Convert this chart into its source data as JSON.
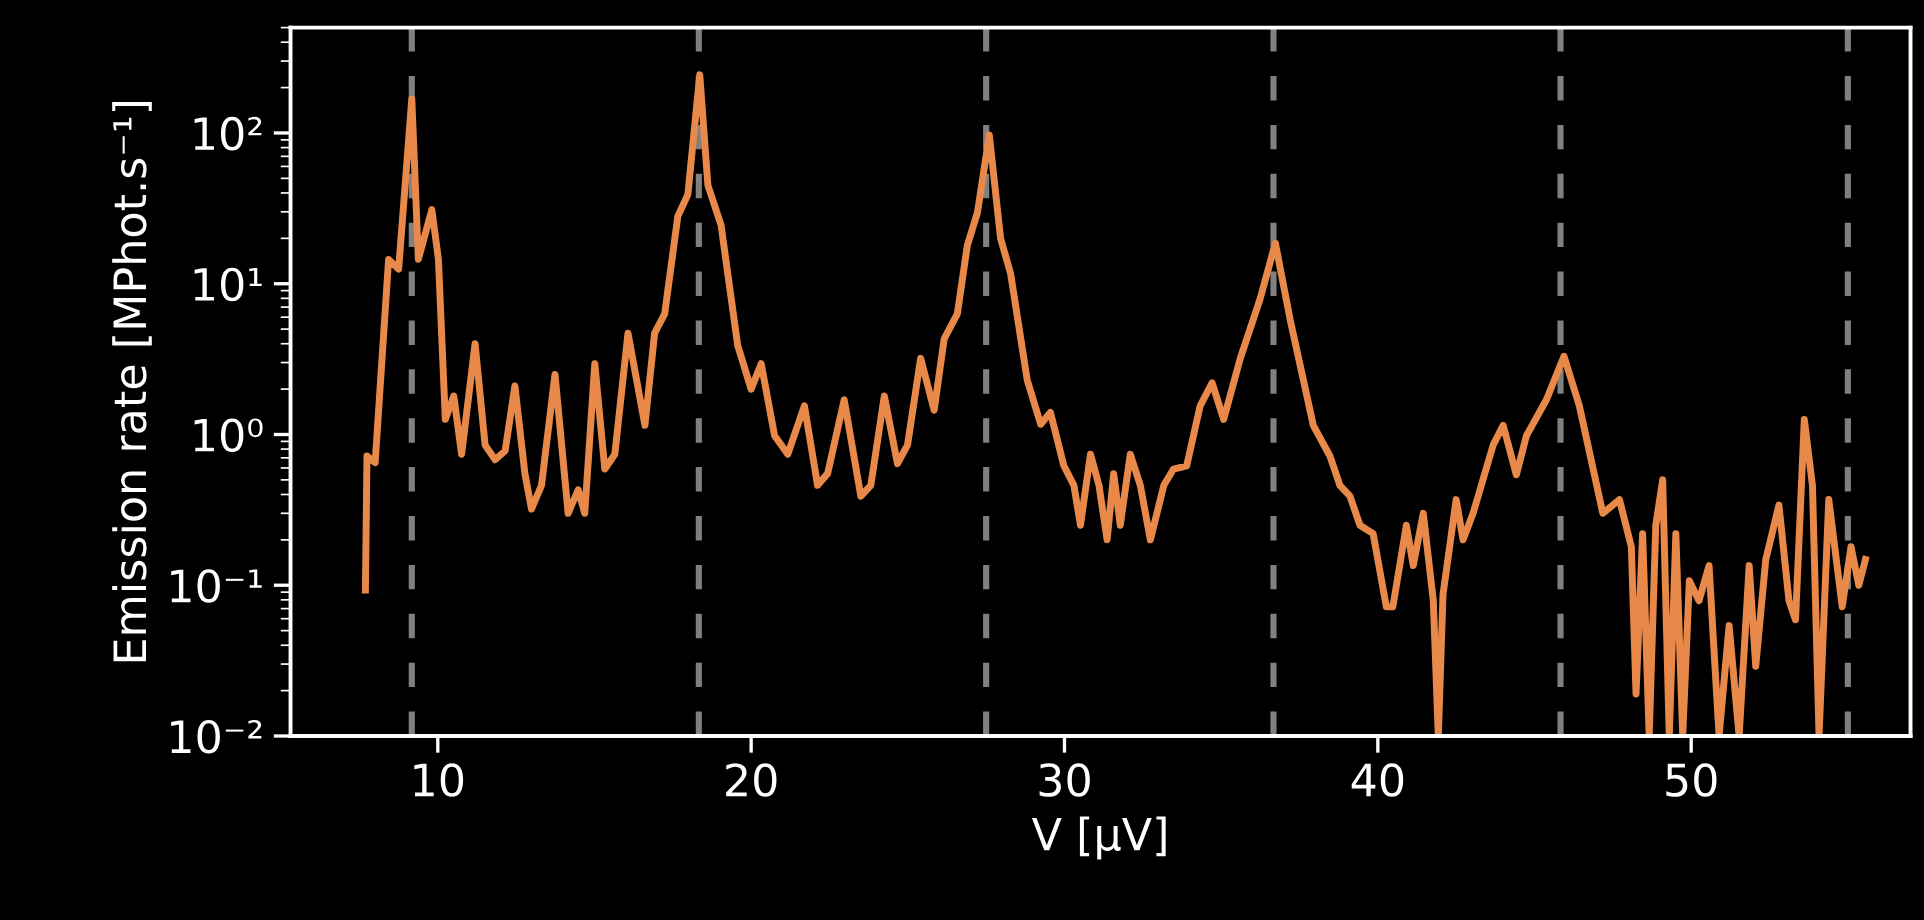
{
  "chart_data": {
    "type": "line",
    "xlabel": "V [μV]",
    "ylabel": "Emission rate [MPhot.s⁻¹]",
    "xlim": [
      5.3,
      57
    ],
    "xticks": [
      10,
      20,
      30,
      40,
      50
    ],
    "ylim": [
      0.01,
      500
    ],
    "log": "y",
    "yticks": [
      {
        "value": 0.01,
        "label": "10⁻²"
      },
      {
        "value": 0.1,
        "label": "10⁻¹"
      },
      {
        "value": 1,
        "label": "10⁰"
      },
      {
        "value": 10,
        "label": "10¹"
      },
      {
        "value": 100,
        "label": "10²"
      }
    ],
    "grid": false,
    "legend": false,
    "ref_lines": [
      {
        "axis": "x",
        "value": 9.17,
        "color": "#808080",
        "line_style": "dashed"
      },
      {
        "axis": "x",
        "value": 18.33,
        "color": "#808080",
        "line_style": "dashed"
      },
      {
        "axis": "x",
        "value": 27.5,
        "color": "#808080",
        "line_style": "dashed"
      },
      {
        "axis": "x",
        "value": 36.67,
        "color": "#808080",
        "line_style": "dashed"
      },
      {
        "axis": "x",
        "value": 45.83,
        "color": "#808080",
        "line_style": "dashed"
      },
      {
        "axis": "x",
        "value": 55.0,
        "color": "#808080",
        "line_style": "dashed"
      }
    ],
    "series": [
      {
        "color": "#e8894a",
        "x": [
          7.69,
          7.74,
          8.0,
          8.43,
          8.75,
          9.17,
          9.38,
          9.81,
          10.02,
          10.24,
          10.51,
          10.76,
          11.19,
          11.51,
          11.83,
          12.15,
          12.46,
          12.78,
          12.99,
          13.31,
          13.74,
          14.16,
          14.48,
          14.69,
          15.01,
          15.33,
          15.65,
          16.07,
          16.61,
          16.92,
          17.24,
          17.66,
          17.98,
          18.36,
          18.62,
          19.04,
          19.57,
          20.0,
          20.32,
          20.75,
          21.17,
          21.7,
          22.12,
          22.44,
          22.97,
          23.5,
          23.82,
          24.25,
          24.67,
          24.99,
          25.41,
          25.84,
          26.16,
          26.58,
          26.9,
          27.22,
          27.6,
          27.96,
          28.28,
          28.81,
          29.24,
          29.55,
          29.98,
          30.3,
          30.51,
          30.83,
          31.1,
          31.36,
          31.57,
          31.78,
          32.1,
          32.42,
          32.74,
          33.17,
          33.48,
          33.9,
          34.33,
          34.71,
          35.08,
          35.61,
          36.24,
          36.73,
          37.2,
          37.94,
          38.47,
          38.79,
          39.11,
          39.43,
          39.85,
          40.27,
          40.48,
          40.91,
          41.13,
          41.45,
          41.77,
          41.93,
          42.08,
          42.5,
          42.72,
          43.04,
          43.68,
          44.0,
          44.42,
          44.74,
          45.38,
          45.94,
          46.43,
          47.18,
          47.71,
          48.09,
          48.24,
          48.45,
          48.66,
          48.87,
          49.09,
          49.3,
          49.51,
          49.73,
          49.94,
          50.25,
          50.57,
          50.89,
          51.21,
          51.53,
          51.85,
          52.06,
          52.38,
          52.8,
          53.12,
          53.33,
          53.61,
          53.87,
          54.08,
          54.39,
          54.82,
          55.1,
          55.35,
          55.56
        ],
        "values": [
          0.093,
          0.72,
          0.65,
          14.5,
          12.5,
          168,
          14.5,
          31,
          14.5,
          1.26,
          1.8,
          0.74,
          4.0,
          0.85,
          0.68,
          0.78,
          2.1,
          0.55,
          0.32,
          0.46,
          2.5,
          0.3,
          0.43,
          0.3,
          2.95,
          0.59,
          0.74,
          4.7,
          1.15,
          4.7,
          6.3,
          28,
          39,
          243,
          45,
          24.5,
          3.9,
          2.0,
          2.95,
          0.98,
          0.74,
          1.55,
          0.46,
          0.55,
          1.7,
          0.39,
          0.46,
          1.8,
          0.64,
          0.85,
          3.2,
          1.45,
          4.3,
          6.3,
          18,
          29.5,
          97,
          20,
          11.7,
          2.3,
          1.17,
          1.4,
          0.62,
          0.46,
          0.25,
          0.74,
          0.46,
          0.2,
          0.55,
          0.25,
          0.74,
          0.46,
          0.2,
          0.46,
          0.59,
          0.62,
          1.55,
          2.2,
          1.26,
          3.2,
          7.9,
          18.6,
          5.8,
          1.15,
          0.72,
          0.46,
          0.39,
          0.25,
          0.22,
          0.072,
          0.072,
          0.25,
          0.135,
          0.3,
          0.079,
          0.01,
          0.087,
          0.37,
          0.2,
          0.3,
          0.85,
          1.15,
          0.54,
          0.98,
          1.7,
          3.3,
          1.55,
          0.3,
          0.37,
          0.18,
          0.019,
          0.22,
          0.01,
          0.25,
          0.5,
          0.01,
          0.22,
          0.01,
          0.107,
          0.079,
          0.135,
          0.01,
          0.054,
          0.01,
          0.135,
          0.029,
          0.148,
          0.34,
          0.079,
          0.059,
          1.26,
          0.46,
          0.01,
          0.37,
          0.072,
          0.18,
          0.1,
          0.148
        ]
      }
    ]
  }
}
